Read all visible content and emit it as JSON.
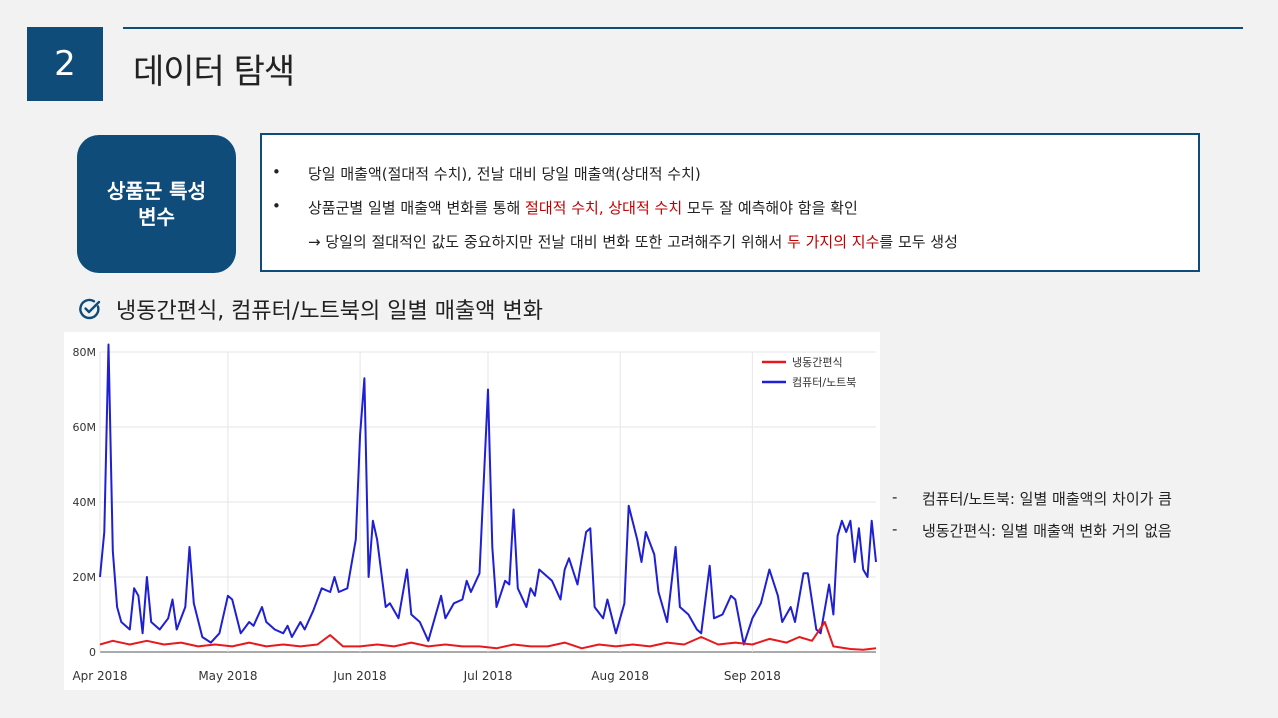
{
  "header": {
    "section_number": "2",
    "title": "데이터 탐색"
  },
  "tag": {
    "line1": "상품군 특성",
    "line2": "변수"
  },
  "info": {
    "bullet": "•",
    "line1": "당일 매출액(절대적 수치), 전날 대비 당일 매출액(상대적 수치)",
    "line2_a": "상품군별 일별 매출액 변화를 통해 ",
    "line2_red": "절대적 수치, 상대적 수치",
    "line2_b": " 모두 잘 예측해야 함을 확인",
    "line3_a": "→ 당일의 절대적인 값도 중요하지만 전날 대비 변화 또한 고려해주기 위해서 ",
    "line3_red": "두 가지의 지수",
    "line3_b": "를 모두 생성"
  },
  "subheading": {
    "icon": "check-circle-icon",
    "text": "냉동간편식, 컴퓨터/노트북의 일별 매출액 변화"
  },
  "notes": [
    {
      "dash": "-",
      "text": "컴퓨터/노트북: 일별 매출액의 차이가 큼"
    },
    {
      "dash": "-",
      "text": "냉동간편식: 일별 매출액 변화 거의 없음"
    }
  ],
  "colors": {
    "accent": "#0f4c7a",
    "highlight": "#c00000",
    "series_red": "#e8191d",
    "series_blue": "#1f1fd6"
  },
  "chart_data": {
    "type": "line",
    "title": "",
    "xlabel": "",
    "ylabel": "",
    "ylim": [
      0,
      80000000
    ],
    "xlim": [
      "2018-04-01",
      "2018-09-30"
    ],
    "y_ticks": [
      0,
      20000000,
      40000000,
      60000000,
      80000000
    ],
    "y_tick_labels": [
      "0",
      "20M",
      "40M",
      "60M",
      "80M"
    ],
    "x_ticks": [
      "2018-04-01",
      "2018-05-01",
      "2018-06-01",
      "2018-07-01",
      "2018-08-01",
      "2018-09-01"
    ],
    "x_tick_labels": [
      "Apr 2018",
      "May 2018",
      "Jun 2018",
      "Jul 2018",
      "Aug 2018",
      "Sep 2018"
    ],
    "grid": true,
    "legend_position": "top-right",
    "series": [
      {
        "name": "냉동간편식",
        "color": "#e8191d",
        "points": [
          [
            "2018-04-01",
            2000000
          ],
          [
            "2018-04-04",
            3000000
          ],
          [
            "2018-04-08",
            2000000
          ],
          [
            "2018-04-12",
            3000000
          ],
          [
            "2018-04-16",
            2000000
          ],
          [
            "2018-04-20",
            2500000
          ],
          [
            "2018-04-24",
            1500000
          ],
          [
            "2018-04-28",
            2000000
          ],
          [
            "2018-05-02",
            1500000
          ],
          [
            "2018-05-06",
            2500000
          ],
          [
            "2018-05-10",
            1500000
          ],
          [
            "2018-05-14",
            2000000
          ],
          [
            "2018-05-18",
            1500000
          ],
          [
            "2018-05-22",
            2000000
          ],
          [
            "2018-05-25",
            4500000
          ],
          [
            "2018-05-28",
            1500000
          ],
          [
            "2018-06-01",
            1500000
          ],
          [
            "2018-06-05",
            2000000
          ],
          [
            "2018-06-09",
            1500000
          ],
          [
            "2018-06-13",
            2500000
          ],
          [
            "2018-06-17",
            1500000
          ],
          [
            "2018-06-21",
            2000000
          ],
          [
            "2018-06-25",
            1500000
          ],
          [
            "2018-06-29",
            1500000
          ],
          [
            "2018-07-03",
            1000000
          ],
          [
            "2018-07-07",
            2000000
          ],
          [
            "2018-07-11",
            1500000
          ],
          [
            "2018-07-15",
            1500000
          ],
          [
            "2018-07-19",
            2500000
          ],
          [
            "2018-07-23",
            1000000
          ],
          [
            "2018-07-27",
            2000000
          ],
          [
            "2018-07-31",
            1500000
          ],
          [
            "2018-08-04",
            2000000
          ],
          [
            "2018-08-08",
            1500000
          ],
          [
            "2018-08-12",
            2500000
          ],
          [
            "2018-08-16",
            2000000
          ],
          [
            "2018-08-20",
            4000000
          ],
          [
            "2018-08-24",
            2000000
          ],
          [
            "2018-08-28",
            2500000
          ],
          [
            "2018-09-01",
            2000000
          ],
          [
            "2018-09-05",
            3500000
          ],
          [
            "2018-09-09",
            2500000
          ],
          [
            "2018-09-12",
            4000000
          ],
          [
            "2018-09-15",
            3000000
          ],
          [
            "2018-09-18",
            8000000
          ],
          [
            "2018-09-20",
            1500000
          ],
          [
            "2018-09-24",
            800000
          ],
          [
            "2018-09-27",
            600000
          ],
          [
            "2018-09-30",
            1000000
          ]
        ]
      },
      {
        "name": "컴퓨터/노트북",
        "color": "#1f1fd6",
        "points": [
          [
            "2018-04-01",
            20000000
          ],
          [
            "2018-04-02",
            32000000
          ],
          [
            "2018-04-03",
            82000000
          ],
          [
            "2018-04-04",
            27000000
          ],
          [
            "2018-04-05",
            12000000
          ],
          [
            "2018-04-06",
            8000000
          ],
          [
            "2018-04-08",
            6000000
          ],
          [
            "2018-04-09",
            17000000
          ],
          [
            "2018-04-10",
            15000000
          ],
          [
            "2018-04-11",
            5000000
          ],
          [
            "2018-04-12",
            20000000
          ],
          [
            "2018-04-13",
            8000000
          ],
          [
            "2018-04-15",
            6000000
          ],
          [
            "2018-04-17",
            9000000
          ],
          [
            "2018-04-18",
            14000000
          ],
          [
            "2018-04-19",
            6000000
          ],
          [
            "2018-04-21",
            12000000
          ],
          [
            "2018-04-22",
            28000000
          ],
          [
            "2018-04-23",
            13000000
          ],
          [
            "2018-04-25",
            4000000
          ],
          [
            "2018-04-27",
            2500000
          ],
          [
            "2018-04-29",
            5000000
          ],
          [
            "2018-05-01",
            15000000
          ],
          [
            "2018-05-02",
            14000000
          ],
          [
            "2018-05-04",
            5000000
          ],
          [
            "2018-05-06",
            8000000
          ],
          [
            "2018-05-07",
            7000000
          ],
          [
            "2018-05-09",
            12000000
          ],
          [
            "2018-05-10",
            8000000
          ],
          [
            "2018-05-12",
            6000000
          ],
          [
            "2018-05-14",
            5000000
          ],
          [
            "2018-05-15",
            7000000
          ],
          [
            "2018-05-16",
            4000000
          ],
          [
            "2018-05-18",
            8000000
          ],
          [
            "2018-05-19",
            6000000
          ],
          [
            "2018-05-21",
            11000000
          ],
          [
            "2018-05-23",
            17000000
          ],
          [
            "2018-05-25",
            16000000
          ],
          [
            "2018-05-26",
            20000000
          ],
          [
            "2018-05-27",
            16000000
          ],
          [
            "2018-05-29",
            17000000
          ],
          [
            "2018-05-31",
            30000000
          ],
          [
            "2018-06-01",
            58000000
          ],
          [
            "2018-06-02",
            73000000
          ],
          [
            "2018-06-03",
            20000000
          ],
          [
            "2018-06-04",
            35000000
          ],
          [
            "2018-06-05",
            30000000
          ],
          [
            "2018-06-07",
            12000000
          ],
          [
            "2018-06-08",
            13000000
          ],
          [
            "2018-06-10",
            9000000
          ],
          [
            "2018-06-12",
            22000000
          ],
          [
            "2018-06-13",
            10000000
          ],
          [
            "2018-06-15",
            8000000
          ],
          [
            "2018-06-17",
            3000000
          ],
          [
            "2018-06-20",
            15000000
          ],
          [
            "2018-06-21",
            9000000
          ],
          [
            "2018-06-23",
            13000000
          ],
          [
            "2018-06-25",
            14000000
          ],
          [
            "2018-06-26",
            19000000
          ],
          [
            "2018-06-27",
            16000000
          ],
          [
            "2018-06-29",
            21000000
          ],
          [
            "2018-07-01",
            70000000
          ],
          [
            "2018-07-02",
            28000000
          ],
          [
            "2018-07-03",
            12000000
          ],
          [
            "2018-07-05",
            19000000
          ],
          [
            "2018-07-06",
            18000000
          ],
          [
            "2018-07-07",
            38000000
          ],
          [
            "2018-07-08",
            17000000
          ],
          [
            "2018-07-10",
            12000000
          ],
          [
            "2018-07-11",
            17000000
          ],
          [
            "2018-07-12",
            15000000
          ],
          [
            "2018-07-13",
            22000000
          ],
          [
            "2018-07-15",
            20000000
          ],
          [
            "2018-07-16",
            19000000
          ],
          [
            "2018-07-18",
            14000000
          ],
          [
            "2018-07-19",
            22000000
          ],
          [
            "2018-07-20",
            25000000
          ],
          [
            "2018-07-22",
            18000000
          ],
          [
            "2018-07-24",
            32000000
          ],
          [
            "2018-07-25",
            33000000
          ],
          [
            "2018-07-26",
            12000000
          ],
          [
            "2018-07-28",
            9000000
          ],
          [
            "2018-07-29",
            14000000
          ],
          [
            "2018-07-31",
            5000000
          ],
          [
            "2018-08-02",
            13000000
          ],
          [
            "2018-08-03",
            39000000
          ],
          [
            "2018-08-05",
            30000000
          ],
          [
            "2018-08-06",
            24000000
          ],
          [
            "2018-08-07",
            32000000
          ],
          [
            "2018-08-09",
            26000000
          ],
          [
            "2018-08-10",
            16000000
          ],
          [
            "2018-08-12",
            8000000
          ],
          [
            "2018-08-14",
            28000000
          ],
          [
            "2018-08-15",
            12000000
          ],
          [
            "2018-08-17",
            10000000
          ],
          [
            "2018-08-19",
            6000000
          ],
          [
            "2018-08-20",
            5000000
          ],
          [
            "2018-08-22",
            23000000
          ],
          [
            "2018-08-23",
            9000000
          ],
          [
            "2018-08-25",
            10000000
          ],
          [
            "2018-08-27",
            15000000
          ],
          [
            "2018-08-28",
            14000000
          ],
          [
            "2018-08-30",
            2000000
          ],
          [
            "2018-09-01",
            9000000
          ],
          [
            "2018-09-03",
            13000000
          ],
          [
            "2018-09-05",
            22000000
          ],
          [
            "2018-09-07",
            15000000
          ],
          [
            "2018-09-08",
            8000000
          ],
          [
            "2018-09-10",
            12000000
          ],
          [
            "2018-09-11",
            8000000
          ],
          [
            "2018-09-13",
            21000000
          ],
          [
            "2018-09-14",
            21000000
          ],
          [
            "2018-09-16",
            6000000
          ],
          [
            "2018-09-17",
            5000000
          ],
          [
            "2018-09-19",
            18000000
          ],
          [
            "2018-09-20",
            10000000
          ],
          [
            "2018-09-21",
            31000000
          ],
          [
            "2018-09-22",
            35000000
          ],
          [
            "2018-09-23",
            32000000
          ],
          [
            "2018-09-24",
            35000000
          ],
          [
            "2018-09-25",
            24000000
          ],
          [
            "2018-09-26",
            33000000
          ],
          [
            "2018-09-27",
            22000000
          ],
          [
            "2018-09-28",
            20000000
          ],
          [
            "2018-09-29",
            35000000
          ],
          [
            "2018-09-30",
            24000000
          ]
        ]
      }
    ]
  }
}
